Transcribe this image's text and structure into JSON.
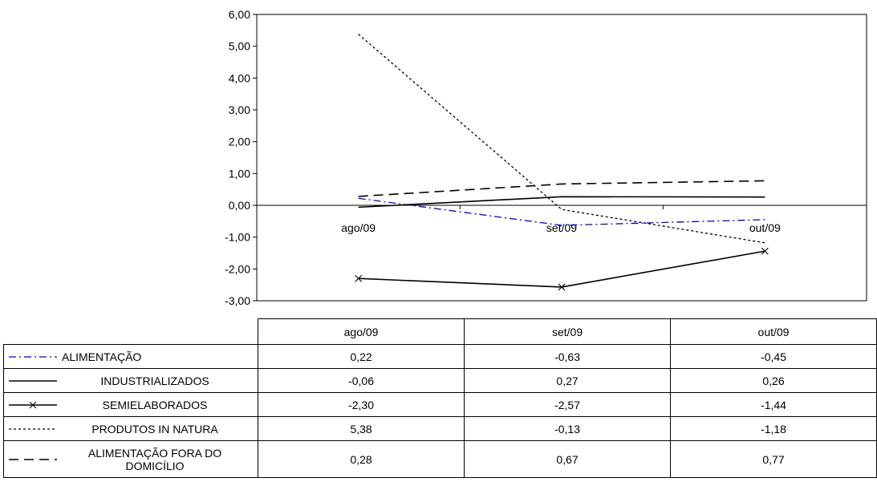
{
  "chart_data": {
    "type": "line",
    "title": "",
    "xlabel": "",
    "ylabel": "",
    "ylim": [
      -3,
      6
    ],
    "yticks": [
      "6,00",
      "5,00",
      "4,00",
      "3,00",
      "2,00",
      "1,00",
      "0,00",
      "-1,00",
      "-2,00",
      "-3,00"
    ],
    "categories": [
      "ago/09",
      "set/09",
      "out/09"
    ],
    "grid": false,
    "legend": "data-table-below",
    "series": [
      {
        "name": "ALIMENTAÇÃO",
        "values": [
          0.22,
          -0.63,
          -0.45
        ],
        "labels": [
          "0,22",
          "-0,63",
          "-0,45"
        ],
        "color": "#0000cc",
        "style": "dash-dot"
      },
      {
        "name": "INDUSTRIALIZADOS",
        "values": [
          -0.06,
          0.27,
          0.26
        ],
        "labels": [
          "-0,06",
          "0,27",
          "0,26"
        ],
        "color": "#000000",
        "style": "solid"
      },
      {
        "name": "SEMIELABORADOS",
        "values": [
          -2.3,
          -2.57,
          -1.44
        ],
        "labels": [
          "-2,30",
          "-2,57",
          "-1,44"
        ],
        "color": "#000000",
        "style": "solid-x-marker"
      },
      {
        "name": "PRODUTOS IN NATURA",
        "values": [
          5.38,
          -0.13,
          -1.18
        ],
        "labels": [
          "5,38",
          "-0,13",
          "-1,18"
        ],
        "color": "#000000",
        "style": "short-dash"
      },
      {
        "name": "ALIMENTAÇÃO FORA DO DOMICÍLIO",
        "values": [
          0.28,
          0.67,
          0.77
        ],
        "labels": [
          "0,28",
          "0,67",
          "0,77"
        ],
        "color": "#000000",
        "style": "long-dash"
      }
    ]
  }
}
